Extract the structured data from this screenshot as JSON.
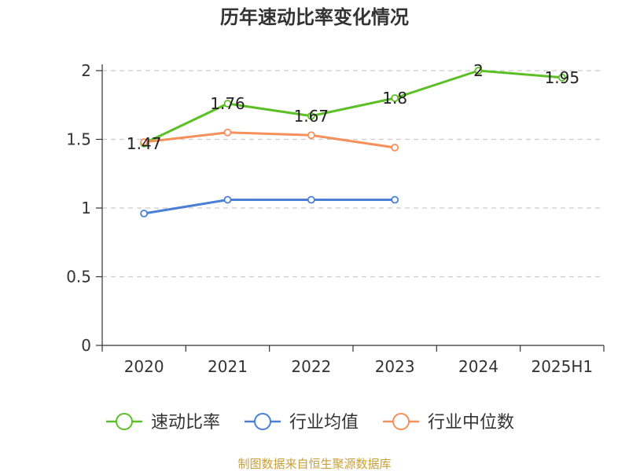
{
  "chart_data": {
    "type": "line",
    "title": "历年速动比率变化情况",
    "categories": [
      "2020",
      "2021",
      "2022",
      "2023",
      "2024",
      "2025H1"
    ],
    "ylim": [
      0,
      2
    ],
    "yticks": [
      "0",
      "0.5",
      "1",
      "1.5",
      "2"
    ],
    "grid": true,
    "legend_position": "bottom",
    "series": [
      {
        "name": "速动比率",
        "color": "#5cbf26",
        "values": [
          1.47,
          1.76,
          1.67,
          1.8,
          2,
          1.95
        ],
        "labels": [
          "1.47",
          "1.76",
          "1.67",
          "1.8",
          "2",
          "1.95"
        ]
      },
      {
        "name": "行业均值",
        "color": "#4a7fd6",
        "values": [
          0.96,
          1.06,
          1.06,
          1.06,
          null,
          null
        ]
      },
      {
        "name": "行业中位数",
        "color": "#f5905a",
        "values": [
          1.48,
          1.55,
          1.53,
          1.44,
          null,
          null
        ]
      }
    ],
    "source": "制图数据来自恒生聚源数据库"
  }
}
